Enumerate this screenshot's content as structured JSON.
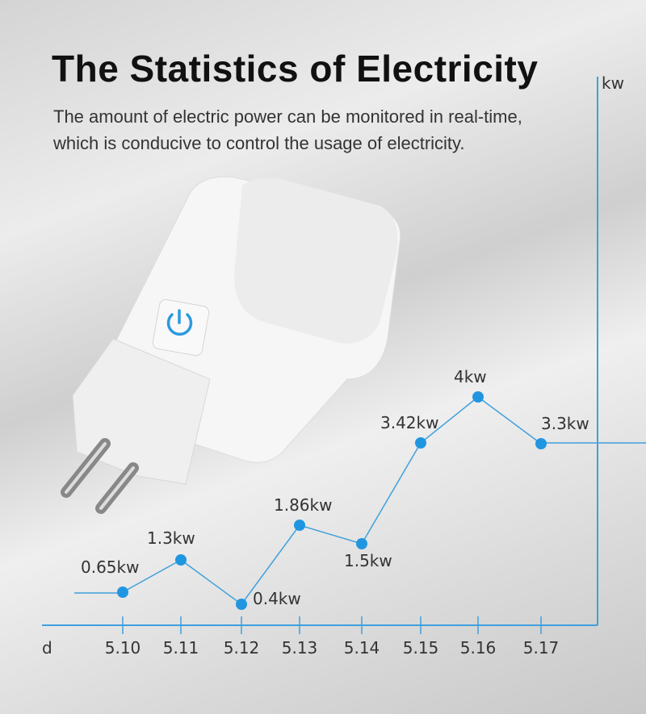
{
  "header": {
    "title": "The Statistics of Electricity",
    "subtitle_line1": "The amount of electric power can be monitored in real-time,",
    "subtitle_line2": "which is conducive to control the usage of electricity."
  },
  "colors": {
    "accent": "#3fa0dc",
    "point": "#2196e0",
    "title": "#111111"
  },
  "chart_data": {
    "type": "line",
    "xlabel": "d",
    "ylabel": "kw",
    "categories": [
      "5.10",
      "5.11",
      "5.12",
      "5.13",
      "5.14",
      "5.15",
      "5.16",
      "5.17"
    ],
    "values": [
      0.65,
      1.3,
      0.4,
      1.86,
      1.5,
      3.42,
      4,
      3.3
    ],
    "data_labels": [
      "0.65kw",
      "1.3kw",
      "0.4kw",
      "1.86kw",
      "1.5kw",
      "3.42kw",
      "4kw",
      "3.3kw"
    ],
    "grid": false
  }
}
